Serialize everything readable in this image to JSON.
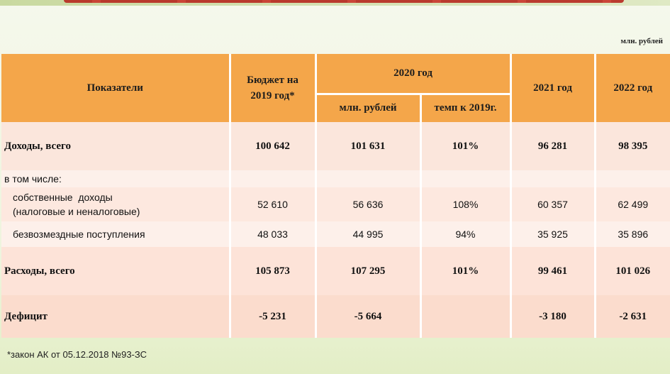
{
  "units": "млн. рублей",
  "headers": {
    "indicators": "Показатели",
    "budget_2019": "Бюджет на 2019 год*",
    "year_2020": "2020 год",
    "year_2020_mln": "млн. рублей",
    "year_2020_rate": "темп к 2019г.",
    "year_2021": "2021 год",
    "year_2022": "2022 год"
  },
  "rows": [
    {
      "label": "Доходы, всего",
      "b2019": "100 642",
      "y2020": "101 631",
      "rate": "101%",
      "y2021": "96 281",
      "y2022": "98 395"
    },
    {
      "label": "в том числе:",
      "b2019": "",
      "y2020": "",
      "rate": "",
      "y2021": "",
      "y2022": ""
    },
    {
      "label": "собственные  доходы",
      "label2": "(налоговые и неналоговые)",
      "b2019": "52 610",
      "y2020": "56 636",
      "rate": "108%",
      "y2021": "60 357",
      "y2022": "62 499"
    },
    {
      "label": "безвозмездные поступления",
      "b2019": "48 033",
      "y2020": "44 995",
      "rate": "94%",
      "y2021": "35 925",
      "y2022": "35 896"
    },
    {
      "label": "Расходы, всего",
      "b2019": "105 873",
      "y2020": "107 295",
      "rate": "101%",
      "y2021": "99 461",
      "y2022": "101 026"
    },
    {
      "label": "Дефицит",
      "b2019": "-5 231",
      "y2020": "-5 664",
      "rate": "",
      "y2021": "-3 180",
      "y2022": "-2 631"
    }
  ],
  "footnote": "*закон АК от 05.12.2018 №93-ЗС",
  "colors": {
    "header": "#f4a64a",
    "row": "#fbe6dc",
    "title_bar": "#b7281f"
  }
}
